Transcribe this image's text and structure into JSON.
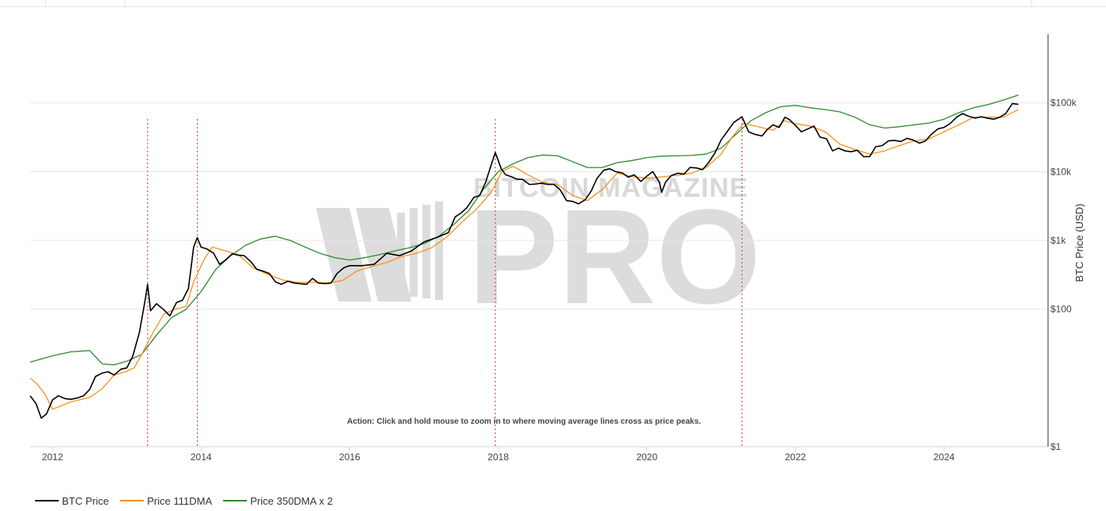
{
  "chart_data": {
    "type": "line",
    "title": "",
    "xlabel": "",
    "ylabel": "BTC Price (USD)",
    "y_scale": "log",
    "ylim": [
      1,
      1000000
    ],
    "xlim": [
      2011.7,
      2025.4
    ],
    "x_ticks": [
      {
        "value": 2012,
        "label": "2012"
      },
      {
        "value": 2014,
        "label": "2014"
      },
      {
        "value": 2016,
        "label": "2016"
      },
      {
        "value": 2018,
        "label": "2018"
      },
      {
        "value": 2020,
        "label": "2020"
      },
      {
        "value": 2022,
        "label": "2022"
      },
      {
        "value": 2024,
        "label": "2024"
      }
    ],
    "y_ticks": [
      {
        "value": 100000,
        "label": "$100k"
      },
      {
        "value": 10000,
        "label": "$10k"
      },
      {
        "value": 1000,
        "label": "$1k"
      },
      {
        "value": 100,
        "label": "$100"
      },
      {
        "value": 1,
        "label": "$1"
      }
    ],
    "peak_markers": [
      2013.28,
      2013.95,
      2017.96,
      2021.28
    ],
    "annotation": "Action: Click and hold mouse to zoom in to where moving average lines cross as price peaks.",
    "watermark": {
      "top": "BITCOIN MAGAZINE",
      "main": "PRO"
    },
    "series": [
      {
        "name": "BTC Price",
        "color": "#000000",
        "x": [
          2011.7,
          2011.78,
          2011.85,
          2011.92,
          2012.0,
          2012.08,
          2012.17,
          2012.25,
          2012.33,
          2012.42,
          2012.5,
          2012.58,
          2012.67,
          2012.75,
          2012.83,
          2012.92,
          2013.0,
          2013.08,
          2013.17,
          2013.25,
          2013.28,
          2013.32,
          2013.4,
          2013.5,
          2013.58,
          2013.67,
          2013.75,
          2013.83,
          2013.9,
          2013.95,
          2014.0,
          2014.08,
          2014.17,
          2014.25,
          2014.33,
          2014.42,
          2014.5,
          2014.58,
          2014.67,
          2014.75,
          2014.83,
          2014.92,
          2015.0,
          2015.08,
          2015.17,
          2015.25,
          2015.33,
          2015.42,
          2015.5,
          2015.58,
          2015.67,
          2015.75,
          2015.83,
          2015.92,
          2016.0,
          2016.17,
          2016.33,
          2016.5,
          2016.67,
          2016.83,
          2017.0,
          2017.17,
          2017.33,
          2017.42,
          2017.5,
          2017.58,
          2017.67,
          2017.75,
          2017.83,
          2017.92,
          2017.96,
          2018.04,
          2018.1,
          2018.17,
          2018.25,
          2018.33,
          2018.42,
          2018.5,
          2018.58,
          2018.67,
          2018.75,
          2018.83,
          2018.92,
          2019.0,
          2019.08,
          2019.17,
          2019.25,
          2019.33,
          2019.42,
          2019.5,
          2019.58,
          2019.67,
          2019.75,
          2019.83,
          2019.92,
          2020.0,
          2020.08,
          2020.17,
          2020.2,
          2020.25,
          2020.33,
          2020.42,
          2020.5,
          2020.58,
          2020.67,
          2020.75,
          2020.83,
          2020.92,
          2021.0,
          2021.08,
          2021.17,
          2021.28,
          2021.37,
          2021.45,
          2021.55,
          2021.62,
          2021.7,
          2021.78,
          2021.86,
          2021.92,
          2022.0,
          2022.08,
          2022.17,
          2022.25,
          2022.33,
          2022.42,
          2022.5,
          2022.58,
          2022.67,
          2022.75,
          2022.83,
          2022.92,
          2023.0,
          2023.08,
          2023.17,
          2023.25,
          2023.33,
          2023.42,
          2023.5,
          2023.58,
          2023.67,
          2023.75,
          2023.83,
          2023.92,
          2024.0,
          2024.08,
          2024.17,
          2024.25,
          2024.33,
          2024.42,
          2024.5,
          2024.58,
          2024.67,
          2024.75,
          2024.83,
          2024.92,
          2025.0
        ],
        "values": [
          5.5,
          4.2,
          2.6,
          3.0,
          4.8,
          5.5,
          5.0,
          4.9,
          5.1,
          5.5,
          6.8,
          10.5,
          11.8,
          12.3,
          11.0,
          13.4,
          14.0,
          20.5,
          46.0,
          140,
          230,
          95,
          120,
          98,
          80,
          125,
          135,
          200,
          800,
          1100,
          800,
          750,
          650,
          450,
          520,
          640,
          610,
          600,
          490,
          380,
          360,
          330,
          250,
          230,
          255,
          240,
          235,
          230,
          280,
          240,
          235,
          240,
          330,
          400,
          430,
          430,
          450,
          650,
          600,
          700,
          950,
          1100,
          1300,
          2200,
          2500,
          3000,
          4200,
          4500,
          7000,
          14000,
          19000,
          11000,
          9000,
          8500,
          7800,
          7700,
          6500,
          6600,
          6800,
          6500,
          6500,
          5500,
          3800,
          3700,
          3400,
          3900,
          5200,
          8000,
          10500,
          11000,
          10000,
          9600,
          8300,
          9000,
          7200,
          8600,
          10000,
          7000,
          5000,
          7000,
          8800,
          9500,
          9200,
          11500,
          11300,
          10700,
          13500,
          19000,
          29000,
          38000,
          52000,
          63000,
          38000,
          35000,
          33000,
          41000,
          48000,
          44000,
          62000,
          57000,
          47000,
          38000,
          42000,
          46000,
          32000,
          30000,
          20000,
          22000,
          20000,
          19500,
          20500,
          16500,
          16600,
          23000,
          24000,
          28000,
          28500,
          27500,
          30500,
          29000,
          26000,
          28000,
          35000,
          42000,
          44000,
          50000,
          62000,
          70000,
          64000,
          60000,
          63000,
          60000,
          58000,
          62000,
          70000,
          98000,
          95000
        ]
      },
      {
        "name": "Price 111DMA",
        "color": "#f7931a",
        "x": [
          2011.7,
          2011.8,
          2011.9,
          2012.0,
          2012.25,
          2012.5,
          2012.67,
          2012.83,
          2013.0,
          2013.1,
          2013.2,
          2013.35,
          2013.5,
          2013.65,
          2013.8,
          2013.9,
          2014.05,
          2014.15,
          2014.3,
          2014.5,
          2014.7,
          2014.9,
          2015.1,
          2015.3,
          2015.5,
          2015.7,
          2015.9,
          2016.1,
          2016.3,
          2016.5,
          2016.7,
          2016.9,
          2017.1,
          2017.3,
          2017.5,
          2017.7,
          2017.9,
          2018.05,
          2018.2,
          2018.4,
          2018.6,
          2018.8,
          2019.0,
          2019.2,
          2019.4,
          2019.6,
          2019.8,
          2020.0,
          2020.2,
          2020.4,
          2020.6,
          2020.8,
          2021.0,
          2021.15,
          2021.3,
          2021.5,
          2021.7,
          2021.85,
          2022.0,
          2022.2,
          2022.4,
          2022.6,
          2022.8,
          2023.0,
          2023.2,
          2023.4,
          2023.6,
          2023.8,
          2024.0,
          2024.2,
          2024.4,
          2024.6,
          2024.8,
          2025.0
        ],
        "values": [
          10,
          8,
          5.8,
          3.5,
          4.5,
          5.2,
          7.0,
          11.0,
          12.5,
          14.0,
          22,
          45,
          85,
          100,
          110,
          250,
          550,
          800,
          720,
          620,
          400,
          320,
          265,
          245,
          245,
          240,
          260,
          360,
          420,
          480,
          580,
          650,
          780,
          1100,
          1800,
          2800,
          4900,
          10000,
          12000,
          9000,
          7000,
          6500,
          4500,
          3800,
          5500,
          9500,
          8500,
          8000,
          8400,
          8800,
          9500,
          11500,
          18000,
          32000,
          50000,
          45000,
          40000,
          55000,
          50000,
          46000,
          38000,
          25000,
          21000,
          18000,
          20000,
          24000,
          28000,
          30000,
          38000,
          48000,
          62000,
          62000,
          62000,
          80000
        ]
      },
      {
        "name": "Price 350DMA x 2",
        "color": "#2e8b2e",
        "x": [
          2011.7,
          2012.0,
          2012.25,
          2012.5,
          2012.67,
          2012.83,
          2013.0,
          2013.2,
          2013.4,
          2013.6,
          2013.8,
          2014.0,
          2014.2,
          2014.4,
          2014.6,
          2014.8,
          2015.0,
          2015.2,
          2015.4,
          2015.6,
          2015.8,
          2016.0,
          2016.2,
          2016.4,
          2016.6,
          2016.8,
          2017.0,
          2017.2,
          2017.4,
          2017.6,
          2017.8,
          2018.0,
          2018.2,
          2018.4,
          2018.6,
          2018.8,
          2019.0,
          2019.2,
          2019.4,
          2019.6,
          2019.8,
          2020.0,
          2020.2,
          2020.4,
          2020.6,
          2020.8,
          2021.0,
          2021.2,
          2021.4,
          2021.6,
          2021.8,
          2022.0,
          2022.2,
          2022.4,
          2022.6,
          2022.8,
          2023.0,
          2023.2,
          2023.4,
          2023.6,
          2023.8,
          2024.0,
          2024.2,
          2024.4,
          2024.6,
          2024.8,
          2025.0
        ],
        "values": [
          17,
          21,
          24,
          25,
          16,
          15.5,
          17.5,
          22,
          42,
          75,
          100,
          180,
          380,
          600,
          850,
          1050,
          1150,
          1000,
          800,
          650,
          560,
          520,
          560,
          620,
          700,
          780,
          900,
          1150,
          1700,
          2700,
          5500,
          10000,
          13000,
          16000,
          17500,
          17000,
          14000,
          11500,
          11500,
          13500,
          14500,
          16000,
          16800,
          17000,
          17200,
          18000,
          22000,
          35000,
          55000,
          72000,
          88000,
          92000,
          85000,
          80000,
          74000,
          62000,
          48000,
          43000,
          45000,
          48000,
          51000,
          58000,
          72000,
          85000,
          95000,
          110000,
          130000
        ]
      }
    ]
  },
  "legend": [
    {
      "label": "BTC Price",
      "color": "#000000"
    },
    {
      "label": "Price 111DMA",
      "color": "#f7931a"
    },
    {
      "label": "Price 350DMA x 2",
      "color": "#2e8b2e"
    }
  ]
}
